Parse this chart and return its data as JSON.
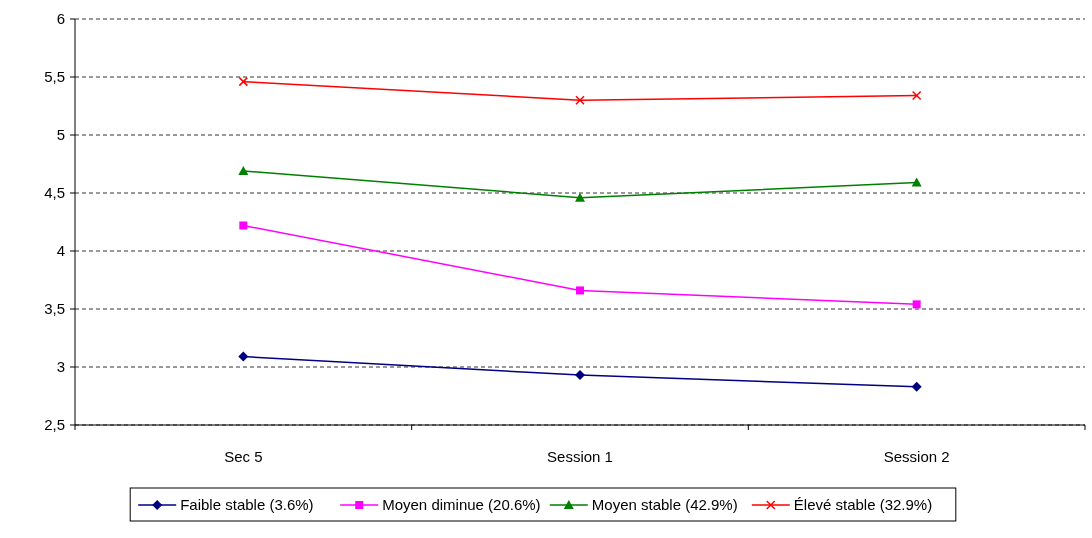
{
  "chart_data": {
    "type": "line",
    "categories": [
      "Sec 5",
      "Session 1",
      "Session 2"
    ],
    "series": [
      {
        "name": "Faible stable (3.6%)",
        "color": "#000080",
        "marker": "diamond",
        "values": [
          3.09,
          2.93,
          2.83
        ]
      },
      {
        "name": "Moyen diminue (20.6%)",
        "color": "#ff00ff",
        "marker": "square",
        "values": [
          4.22,
          3.66,
          3.54
        ]
      },
      {
        "name": "Moyen stable (42.9%)",
        "color": "#008000",
        "marker": "triangle",
        "values": [
          4.69,
          4.46,
          4.59
        ]
      },
      {
        "name": "Élevé stable (32.9%)",
        "color": "#ff0000",
        "marker": "cross",
        "values": [
          5.46,
          5.3,
          5.34
        ]
      }
    ],
    "ylim": [
      2.5,
      6
    ],
    "yticks": [
      {
        "value": 2.5,
        "label": "2,5"
      },
      3,
      {
        "value": 3.5,
        "label": "3,5"
      },
      4,
      {
        "value": 4.5,
        "label": "4,5"
      },
      5,
      {
        "value": 5.5,
        "label": "5,5"
      },
      6
    ],
    "grid": "y",
    "legend": "bottom",
    "line_style": "solid"
  }
}
